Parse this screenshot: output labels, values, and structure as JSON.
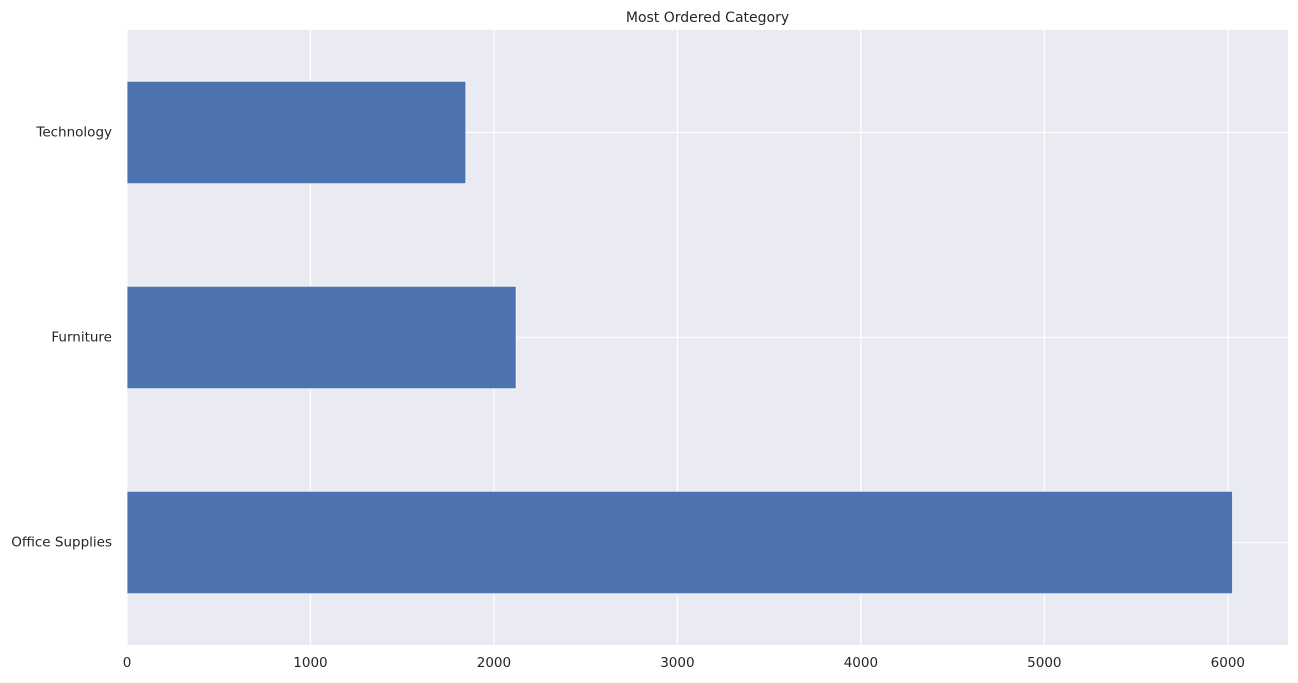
{
  "chart_data": {
    "type": "bar",
    "orientation": "horizontal",
    "title": "Most Ordered Category",
    "xlabel": "",
    "ylabel": "",
    "categories": [
      "Office Supplies",
      "Furniture",
      "Technology"
    ],
    "values": [
      6026,
      2121,
      1847
    ],
    "xlim": [
      0,
      6328
    ],
    "xticks": [
      0,
      1000,
      2000,
      3000,
      4000,
      5000,
      6000
    ],
    "grid": true,
    "legend": "none",
    "bar_color": "#4c72b0",
    "background_color": "#eaeaf2",
    "grid_color": "#ffffff"
  }
}
